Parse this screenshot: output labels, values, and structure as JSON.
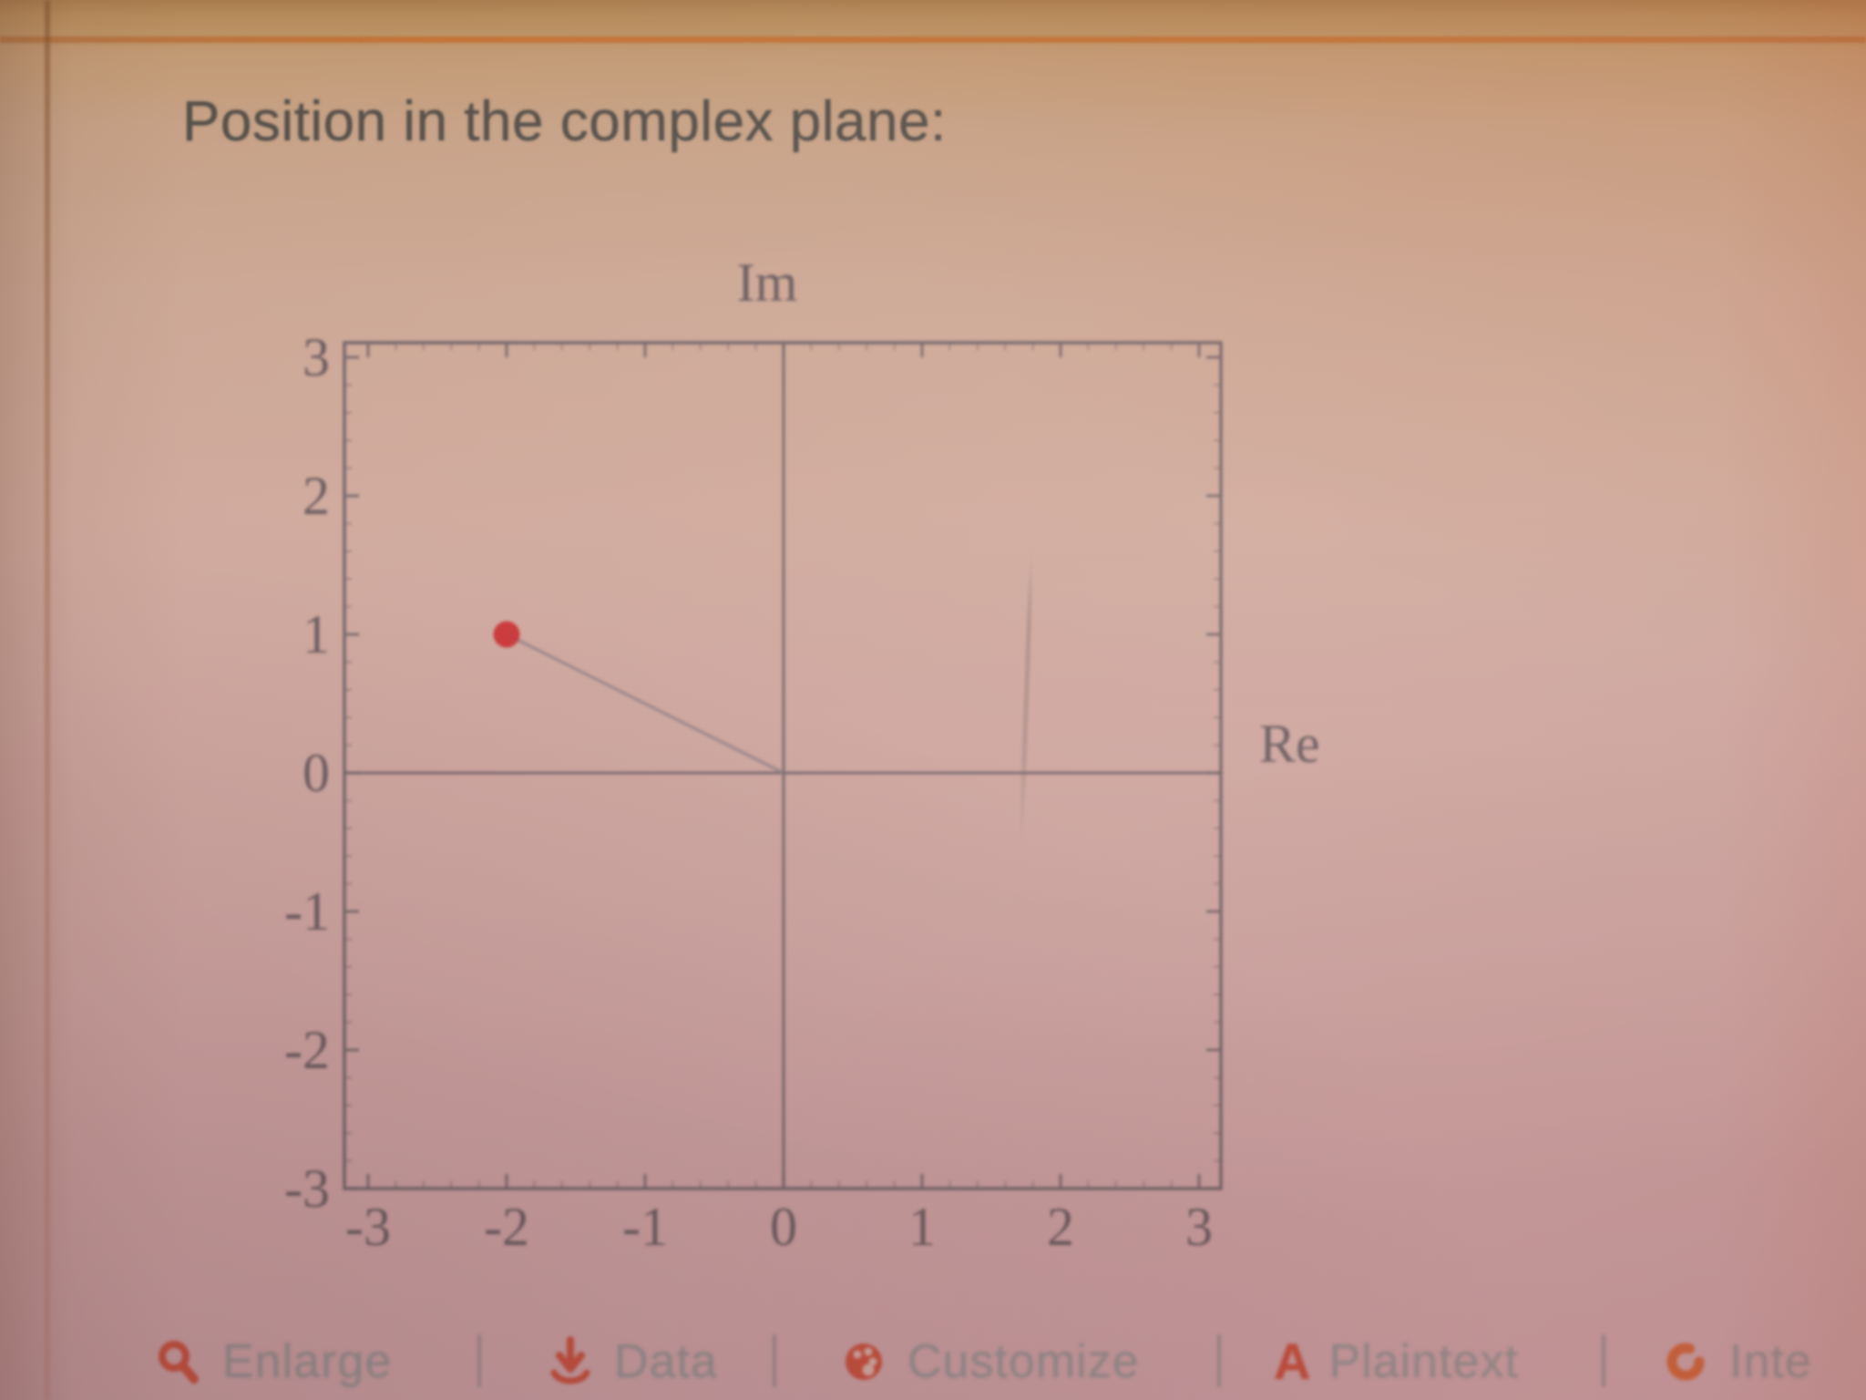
{
  "pod": {
    "title": "Position in the complex plane:"
  },
  "chart_data": {
    "type": "scatter",
    "title": "Position in the complex plane:",
    "xlabel": "Re",
    "ylabel": "Im",
    "xlim": [
      -3,
      3
    ],
    "ylim": [
      -3,
      3
    ],
    "x_tick_labels": [
      "-3",
      "-2",
      "-1",
      "0",
      "1",
      "2",
      "3"
    ],
    "y_tick_labels": [
      "3",
      "2",
      "1",
      "0",
      "-1",
      "-2",
      "-3"
    ],
    "x_ticks": [
      -3,
      -2,
      -1,
      0,
      1,
      2,
      3
    ],
    "y_ticks": [
      3,
      2,
      1,
      0,
      -1,
      -2,
      -3
    ],
    "grid": false,
    "frame": true,
    "points": [
      {
        "re": -2,
        "im": 1
      }
    ],
    "segments": [
      {
        "from": [
          0,
          0
        ],
        "to": [
          -2,
          1
        ]
      }
    ],
    "annotations": [],
    "legend": null,
    "colors": {
      "point": "#c92b30",
      "segment": "#8a7d83",
      "axis": "#6d5f64",
      "tick_label": "#6a5b5f"
    }
  },
  "toolbar": {
    "separator": "|",
    "items": [
      {
        "icon": "magnifier",
        "label": "Enlarge"
      },
      {
        "icon": "download",
        "label": "Data"
      },
      {
        "icon": "palette",
        "label": "Customize"
      },
      {
        "icon": "letter-a",
        "label": "Plaintext"
      },
      {
        "icon": "interactive-ring",
        "label": "Inte"
      }
    ]
  },
  "colors": {
    "page_top_band": "#b68b5c",
    "page_rule_orange": "#c56a2a",
    "page_background_mid": "#cfa99c",
    "toolbar_icon": "#bf4430",
    "toolbar_label": "#93898b",
    "title_text": "#57514b"
  }
}
